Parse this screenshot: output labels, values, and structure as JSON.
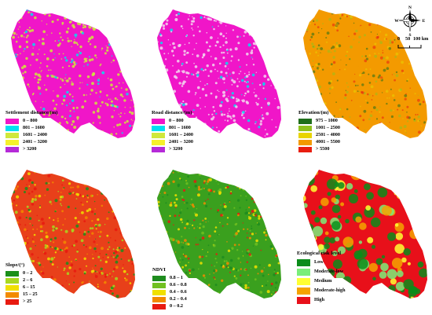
{
  "panels": [
    {
      "id": "settlement",
      "title": "Settlement distance/(m)",
      "items": [
        {
          "label": "0 – 800",
          "color": "#f016c8"
        },
        {
          "label": "801 – 1600",
          "color": "#00e0f0"
        },
        {
          "label": "1601 – 2400",
          "color": "#cfe83c"
        },
        {
          "label": "2401 – 3200",
          "color": "#f5f02c"
        },
        {
          "label": "> 3200",
          "color": "#b52ad8"
        }
      ],
      "fill": "#f016c8",
      "accent": "#cfe83c"
    },
    {
      "id": "road",
      "title": "Road distance/(m)",
      "items": [
        {
          "label": "0 – 800",
          "color": "#f016c8"
        },
        {
          "label": "801 – 1600",
          "color": "#00e0f0"
        },
        {
          "label": "1601 – 2400",
          "color": "#cfe83c"
        },
        {
          "label": "2401 – 3200",
          "color": "#f5f02c"
        },
        {
          "label": "> 3200",
          "color": "#b52ad8"
        }
      ],
      "fill": "#f016c8",
      "accent": "#f2d8ee"
    },
    {
      "id": "elevation",
      "title": "Elevation/(m)",
      "items": [
        {
          "label": "975 – 1000",
          "color": "#1f6e1a"
        },
        {
          "label": "1001 – 2500",
          "color": "#8fc21e"
        },
        {
          "label": "2501 – 4000",
          "color": "#e8d400"
        },
        {
          "label": "4001 – 5500",
          "color": "#f39a00"
        },
        {
          "label": "> 5500",
          "color": "#e81e10"
        }
      ],
      "fill": "#f39a00",
      "accent": "#e8d400"
    },
    {
      "id": "slope",
      "title": "Slope/(°)",
      "items": [
        {
          "label": "0 – 2",
          "color": "#1a8f1a"
        },
        {
          "label": "2 – 6",
          "color": "#a8d820"
        },
        {
          "label": "6 – 15",
          "color": "#f0e000"
        },
        {
          "label": "15 – 25",
          "color": "#f28a00"
        },
        {
          "label": "> 25",
          "color": "#e81a10"
        }
      ],
      "fill": "#e8401a",
      "accent": "#f28a00"
    },
    {
      "id": "ndvi",
      "title": "NDVI",
      "items": [
        {
          "label": "0.8 – 1",
          "color": "#1e8c1e"
        },
        {
          "label": "0.6 – 0.8",
          "color": "#70c020"
        },
        {
          "label": "0.4 – 0.6",
          "color": "#f0e000"
        },
        {
          "label": "0.2 – 0.4",
          "color": "#f28a00"
        },
        {
          "label": "0 – 0.2",
          "color": "#e81a10"
        }
      ],
      "fill": "#3aa01e",
      "accent": "#f0e000"
    },
    {
      "id": "risk",
      "title": "Ecological risk level",
      "items": [
        {
          "label": "Low",
          "color": "#0a8c1a"
        },
        {
          "label": "Moderate-low",
          "color": "#7aee7a"
        },
        {
          "label": "Medium",
          "color": "#ffff32"
        },
        {
          "label": "Moderate-high",
          "color": "#f5a300"
        },
        {
          "label": "High",
          "color": "#e8101a"
        }
      ],
      "fill": "#e8101a",
      "accent": "#0a8c1a"
    }
  ],
  "north_arrow": {
    "n": "N",
    "s": "S",
    "e": "E",
    "w": "W"
  },
  "scalebar": {
    "labels": [
      "0",
      "50",
      "100 km"
    ]
  }
}
